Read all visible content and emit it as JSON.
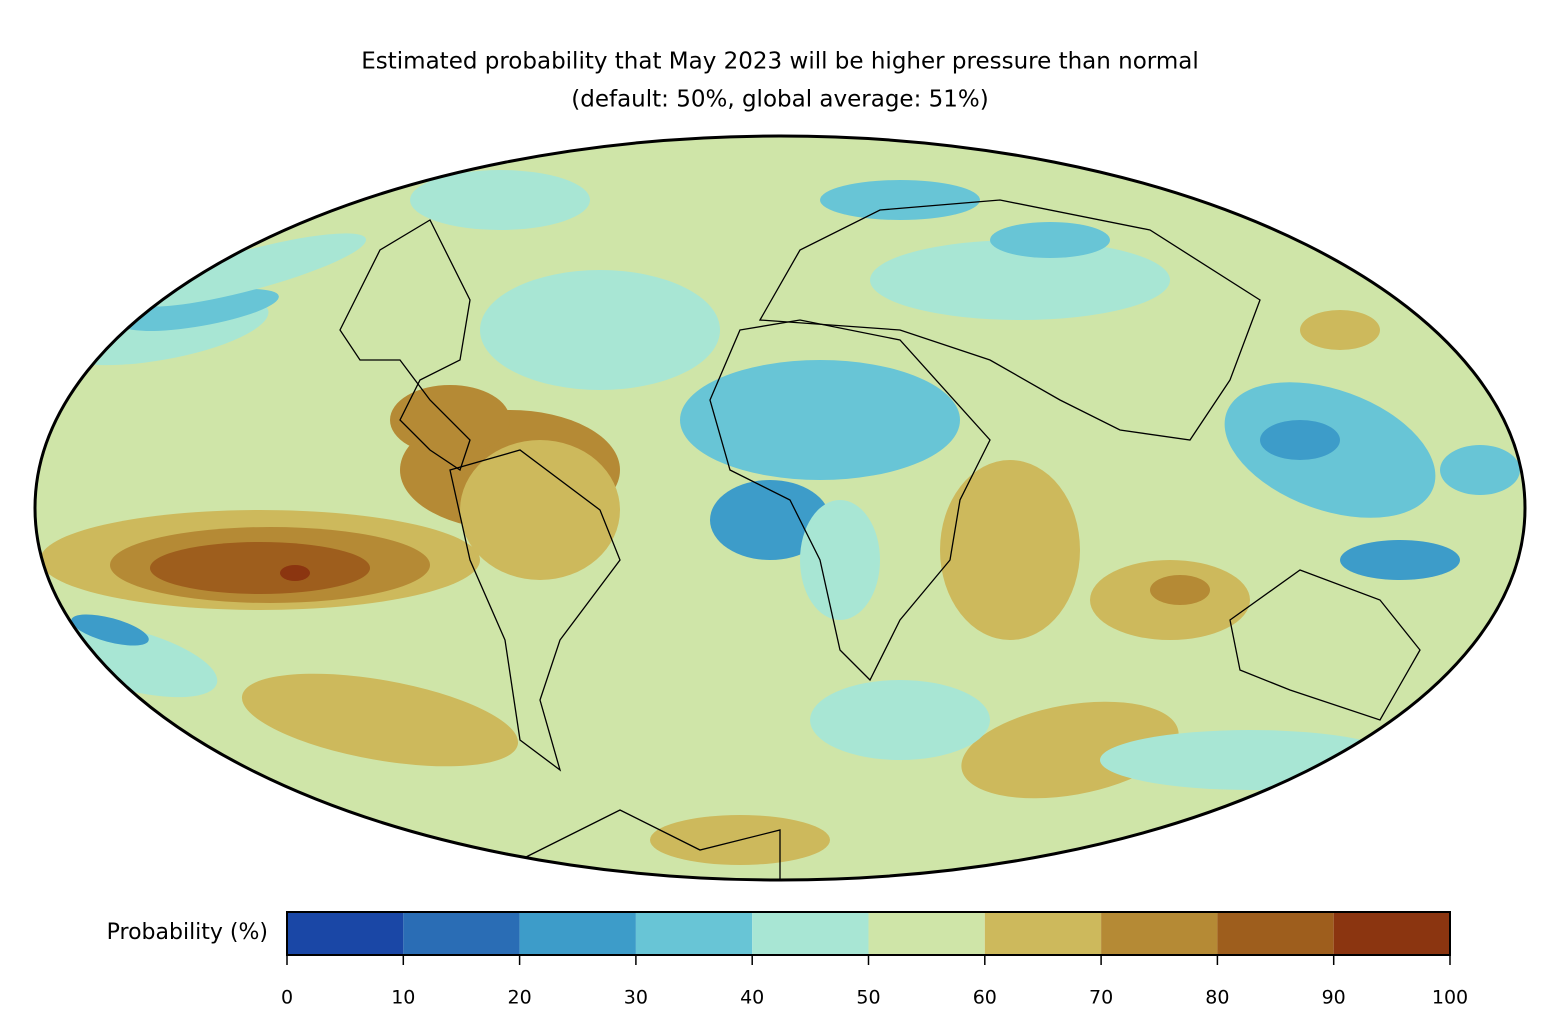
{
  "chart_data": {
    "type": "map",
    "title": "Estimated probability that May 2023 will be higher pressure than normal",
    "subtitle": "(default: 50%, global average: 51%)",
    "colorbar": {
      "label": "Probability (%)",
      "lim": [
        0,
        100
      ],
      "ticks": [
        0,
        10,
        20,
        30,
        40,
        50,
        60,
        70,
        80,
        90,
        100
      ],
      "colors": [
        "#1a47a6",
        "#2a6db5",
        "#3d9cc9",
        "#68c5d6",
        "#a8e6d4",
        "#cfe5a8",
        "#cdb95c",
        "#b58a35",
        "#9e5e1d",
        "#8b3510"
      ]
    }
  }
}
